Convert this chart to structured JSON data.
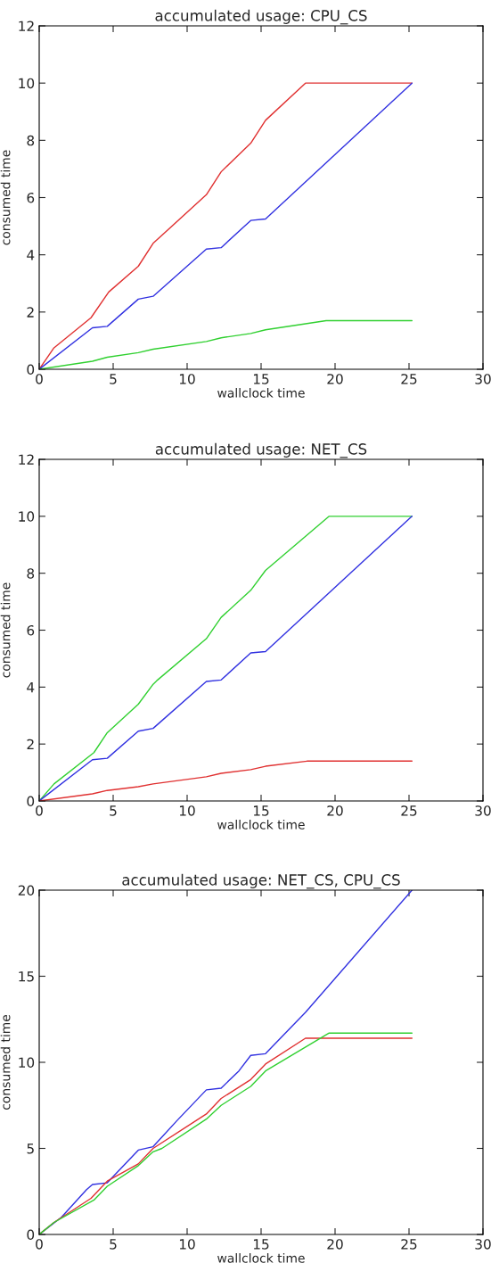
{
  "chart_data": [
    {
      "type": "line",
      "title": "accumulated usage: CPU_CS",
      "xlabel": "wallclock time",
      "ylabel": "consumed time",
      "xlim": [
        0,
        30
      ],
      "xticks": [
        0,
        5,
        10,
        15,
        20,
        25,
        30
      ],
      "ylim": [
        0,
        12
      ],
      "yticks": [
        0,
        2,
        4,
        6,
        8,
        10,
        12
      ],
      "grid": false,
      "marker": "none",
      "line_style": "solid",
      "series": [
        {
          "color": "#e03030",
          "x": [
            0,
            1,
            3.5,
            4.7,
            6.7,
            7.7,
            11.3,
            12.3,
            14.3,
            15.3,
            18,
            25.2
          ],
          "values": [
            0,
            0.75,
            1.8,
            2.7,
            3.6,
            4.4,
            6.1,
            6.9,
            7.9,
            8.7,
            10,
            10
          ]
        },
        {
          "color": "#3030e0",
          "x": [
            0,
            3.6,
            4.6,
            6.7,
            7.7,
            11.3,
            12.3,
            14.3,
            15.3,
            25.2
          ],
          "values": [
            0,
            1.45,
            1.5,
            2.45,
            2.55,
            4.2,
            4.25,
            5.2,
            5.25,
            10
          ]
        },
        {
          "color": "#30d030",
          "x": [
            0,
            3.6,
            4.6,
            6.7,
            7.7,
            11.3,
            12.3,
            14.3,
            15.3,
            19.4,
            25.2
          ],
          "values": [
            0,
            0.28,
            0.42,
            0.58,
            0.7,
            0.97,
            1.1,
            1.25,
            1.38,
            1.7,
            1.7
          ]
        }
      ]
    },
    {
      "type": "line",
      "title": "accumulated usage: NET_CS",
      "xlabel": "wallclock time",
      "ylabel": "consumed time",
      "xlim": [
        0,
        30
      ],
      "xticks": [
        0,
        5,
        10,
        15,
        20,
        25,
        30
      ],
      "ylim": [
        0,
        12
      ],
      "yticks": [
        0,
        2,
        4,
        6,
        8,
        10,
        12
      ],
      "grid": false,
      "marker": "none",
      "line_style": "solid",
      "series": [
        {
          "color": "#30d030",
          "x": [
            0,
            1,
            3.7,
            4.6,
            6.7,
            7.7,
            8,
            11.3,
            12.3,
            14.3,
            15.3,
            19.6,
            25.2
          ],
          "values": [
            0,
            0.6,
            1.7,
            2.4,
            3.4,
            4.1,
            4.25,
            5.7,
            6.45,
            7.4,
            8.1,
            10,
            10
          ]
        },
        {
          "color": "#3030e0",
          "x": [
            0,
            3.6,
            4.6,
            6.7,
            7.7,
            11.3,
            12.3,
            14.3,
            15.3,
            25.2
          ],
          "values": [
            0,
            1.45,
            1.5,
            2.45,
            2.55,
            4.2,
            4.25,
            5.2,
            5.25,
            10
          ]
        },
        {
          "color": "#e03030",
          "x": [
            0,
            3.6,
            4.6,
            6.7,
            7.7,
            11.3,
            12.3,
            14.3,
            15.3,
            18.1,
            25.2
          ],
          "values": [
            0,
            0.25,
            0.37,
            0.5,
            0.6,
            0.85,
            0.97,
            1.1,
            1.22,
            1.4,
            1.4
          ]
        }
      ]
    },
    {
      "type": "line",
      "title": "accumulated usage: NET_CS, CPU_CS",
      "xlabel": "wallclock time",
      "ylabel": "consumed time",
      "xlim": [
        0,
        30
      ],
      "xticks": [
        0,
        5,
        10,
        15,
        20,
        25,
        30
      ],
      "ylim": [
        0,
        20
      ],
      "yticks": [
        0,
        5,
        10,
        15,
        20
      ],
      "grid": false,
      "marker": "none",
      "line_style": "solid",
      "series": [
        {
          "color": "#3030e0",
          "x": [
            0,
            1.5,
            3.2,
            3.6,
            4.6,
            6.7,
            7.7,
            9.3,
            11.3,
            12.3,
            13.5,
            14.3,
            15.3,
            18,
            25.2
          ],
          "values": [
            0,
            1,
            2.6,
            2.9,
            3,
            4.9,
            5.1,
            6.6,
            8.4,
            8.5,
            9.5,
            10.4,
            10.5,
            12.9,
            20
          ]
        },
        {
          "color": "#e03030",
          "x": [
            0,
            1,
            3.5,
            4.6,
            6.7,
            7.7,
            11.3,
            12.3,
            14.3,
            15.3,
            18,
            25.2
          ],
          "values": [
            0,
            0.7,
            2.1,
            3.1,
            4.1,
            5,
            7,
            7.9,
            9,
            9.9,
            11.4,
            11.4
          ]
        },
        {
          "color": "#30d030",
          "x": [
            0,
            1,
            3.7,
            4.6,
            6.7,
            7.7,
            8.3,
            11.3,
            12.3,
            14.3,
            15.3,
            19.6,
            25.2
          ],
          "values": [
            0,
            0.7,
            2.0,
            2.8,
            4.0,
            4.8,
            5.0,
            6.7,
            7.5,
            8.6,
            9.5,
            11.7,
            11.7
          ]
        }
      ]
    }
  ]
}
